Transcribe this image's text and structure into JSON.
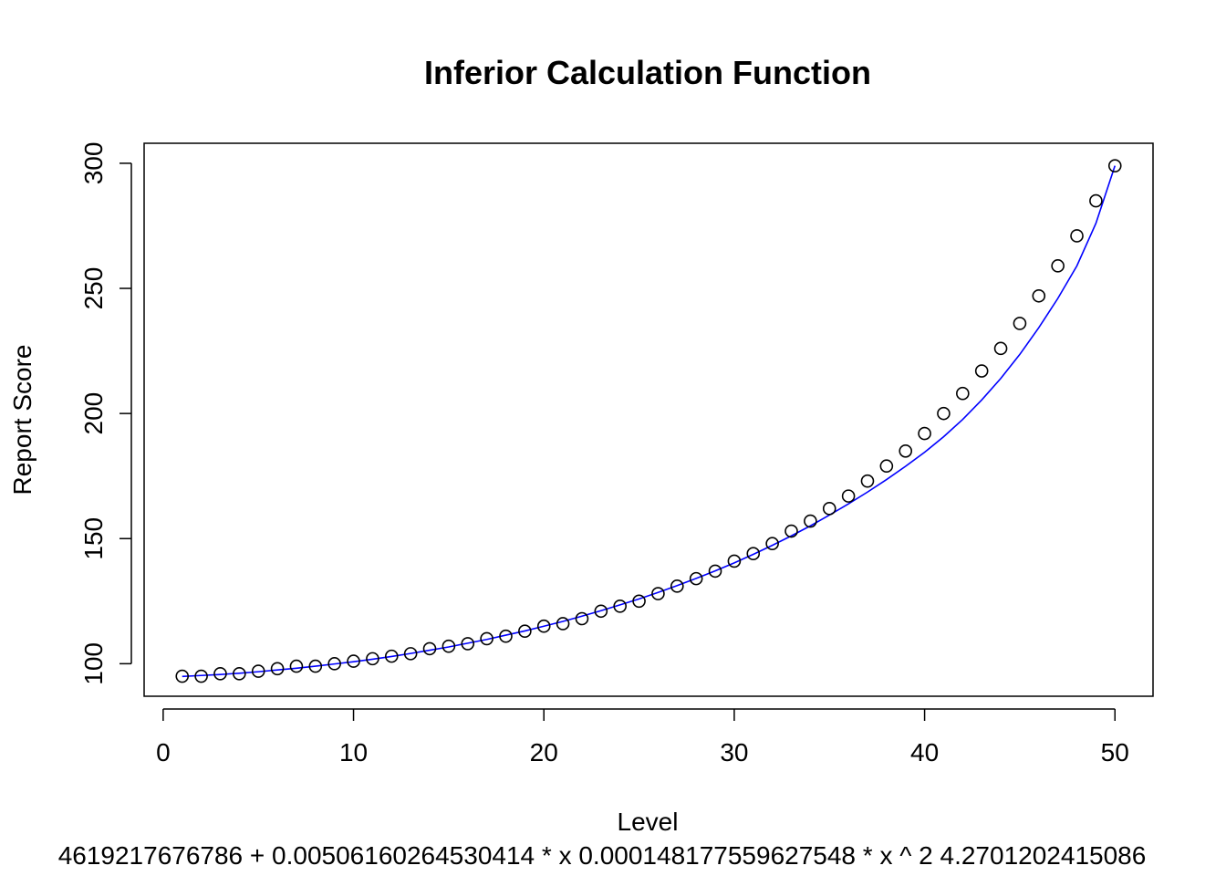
{
  "chart_data": {
    "type": "scatter",
    "title": "Inferior Calculation Function",
    "xlabel": "Level",
    "ylabel": "Report Score",
    "subtitle": "4619217676786 + 0.00506160264530414 * x 0.000148177559627548 * x ^ 2 4.2701202415086",
    "xlim": [
      -1,
      52
    ],
    "ylim": [
      87,
      308
    ],
    "x_ticks": [
      0,
      10,
      20,
      30,
      40,
      50
    ],
    "y_ticks": [
      100,
      150,
      200,
      250,
      300
    ],
    "grid": false,
    "legend": "none",
    "point_color": "#000000",
    "line_color": "#0000ff",
    "series": [
      {
        "marker": "open-circle",
        "x": [
          1,
          2,
          3,
          4,
          5,
          6,
          7,
          8,
          9,
          10,
          11,
          12,
          13,
          14,
          15,
          16,
          17,
          18,
          19,
          20,
          21,
          22,
          23,
          24,
          25,
          26,
          27,
          28,
          29,
          30,
          31,
          32,
          33,
          34,
          35,
          36,
          37,
          38,
          39,
          40,
          41,
          42,
          43,
          44,
          45,
          46,
          47,
          48,
          49,
          50
        ],
        "y": [
          95,
          95,
          96,
          96,
          97,
          98,
          99,
          99,
          100,
          101,
          102,
          103,
          104,
          106,
          107,
          108,
          110,
          111,
          113,
          115,
          116,
          118,
          121,
          123,
          125,
          128,
          131,
          134,
          137,
          141,
          144,
          148,
          153,
          157,
          162,
          167,
          173,
          179,
          185,
          192,
          200,
          208,
          217,
          226,
          236,
          247,
          259,
          271,
          285,
          299
        ]
      },
      {
        "marker": "line",
        "x": [
          1,
          2,
          3,
          4,
          5,
          6,
          7,
          8,
          9,
          10,
          11,
          12,
          13,
          14,
          15,
          16,
          17,
          18,
          19,
          20,
          21,
          22,
          23,
          24,
          25,
          26,
          27,
          28,
          29,
          30,
          31,
          32,
          33,
          34,
          35,
          36,
          37,
          38,
          39,
          40,
          41,
          42,
          43,
          44,
          45,
          46,
          47,
          48,
          49,
          50
        ],
        "y": [
          94.9,
          95.3,
          95.7,
          96.2,
          96.8,
          97.5,
          98.2,
          99.0,
          99.9,
          100.8,
          101.8,
          102.9,
          104.1,
          105.4,
          106.7,
          108.2,
          109.7,
          111.4,
          113.1,
          115.0,
          116.9,
          119.0,
          121.2,
          123.5,
          125.9,
          128.5,
          131.2,
          134.1,
          137.1,
          140.3,
          143.7,
          147.3,
          151.1,
          155.1,
          159.4,
          163.9,
          168.6,
          173.6,
          178.9,
          184.5,
          190.7,
          197.6,
          205.4,
          214.0,
          223.6,
          234.3,
          246.0,
          259.0,
          276.0,
          299.0
        ]
      }
    ]
  }
}
